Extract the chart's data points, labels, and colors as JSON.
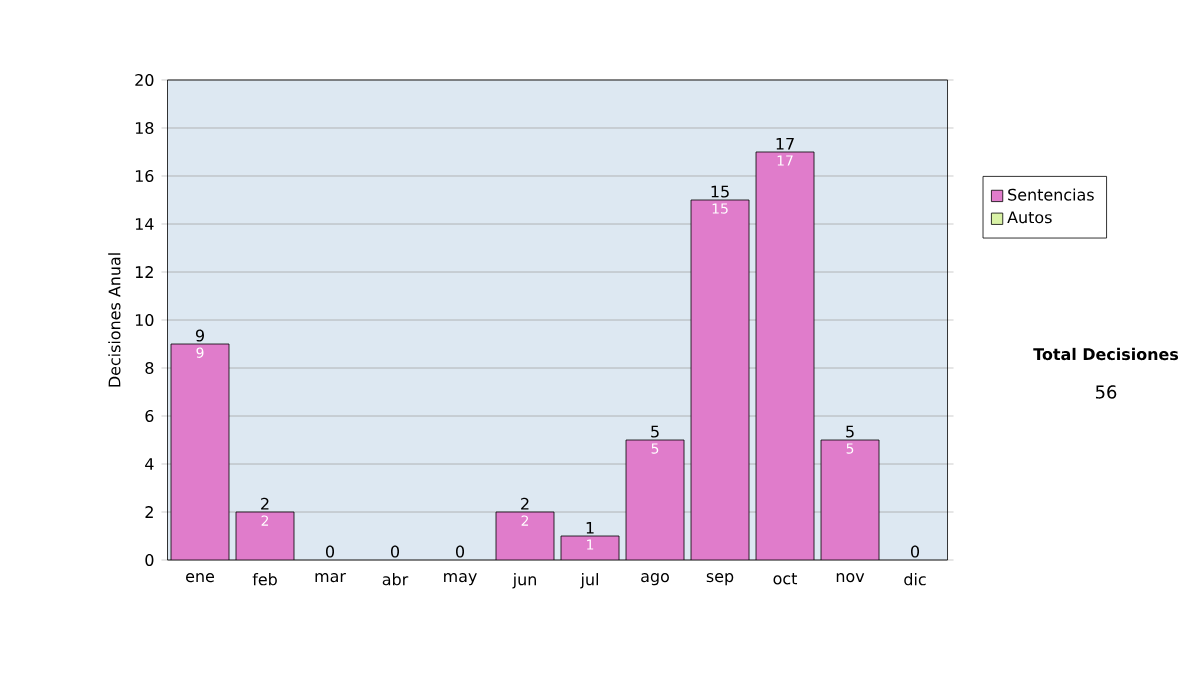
{
  "chart_data": {
    "type": "bar",
    "stacked": true,
    "ylabel": "Decisiones Anual",
    "categories": [
      "ene",
      "feb",
      "mar",
      "abr",
      "may",
      "jun",
      "jul",
      "ago",
      "sep",
      "oct",
      "nov",
      "dic"
    ],
    "series": [
      {
        "name": "Sentencias",
        "color": "#e07ccb",
        "values": [
          9,
          2,
          0,
          0,
          0,
          2,
          1,
          5,
          15,
          17,
          5,
          0
        ],
        "value_labels": [
          "9",
          "2",
          null,
          null,
          null,
          "2",
          "1",
          "5",
          "15",
          "17",
          "5",
          null
        ]
      },
      {
        "name": "Autos",
        "color": "#d9f2a6",
        "values": [
          0,
          0,
          0,
          0,
          0,
          0,
          0,
          0,
          0,
          0,
          0,
          0
        ]
      }
    ],
    "totals": [
      "9",
      "2",
      "0",
      "0",
      "0",
      "2",
      "1",
      "5",
      "15",
      "17",
      "5",
      "0"
    ],
    "ylim": [
      0,
      20
    ],
    "yticks": [
      0,
      2,
      4,
      6,
      8,
      10,
      12,
      14,
      16,
      18,
      20
    ],
    "grid": "y",
    "legend": "right",
    "annotations": [
      "Total Decisiones",
      "56"
    ]
  }
}
